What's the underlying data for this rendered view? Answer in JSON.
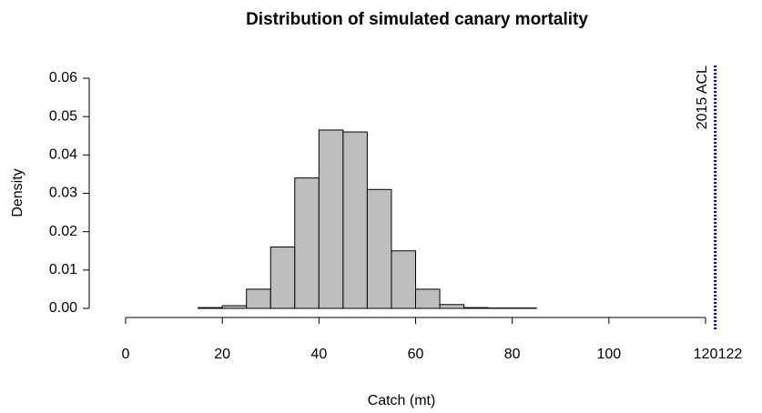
{
  "chart_data": {
    "type": "histogram",
    "title": "Distribution of simulated canary mortality",
    "x_label": "Catch (mt)",
    "y_label": "Density",
    "bins": [
      15,
      20,
      25,
      30,
      35,
      40,
      45,
      50,
      55,
      60,
      65,
      70,
      75,
      80,
      85
    ],
    "values": [
      0.0002,
      0.0007,
      0.005,
      0.016,
      0.034,
      0.0465,
      0.046,
      0.031,
      0.015,
      0.005,
      0.001,
      0.0002,
      0.0001,
      0.0001
    ],
    "color": "#bebebe",
    "xlim": [
      0,
      120
    ],
    "xticks": [
      0,
      20,
      40,
      60,
      80,
      100,
      120
    ],
    "ylim": [
      0,
      0.06
    ],
    "yticks": [
      {
        "value": 0,
        "label": "0.00"
      },
      {
        "value": 0.01,
        "label": "0.01"
      },
      {
        "value": 0.02,
        "label": "0.02"
      },
      {
        "value": 0.03,
        "label": "0.03"
      },
      {
        "value": 0.04,
        "label": "0.04"
      },
      {
        "value": 0.05,
        "label": "0.05"
      },
      {
        "value": 0.06,
        "label": "0.06"
      }
    ],
    "reference_line": {
      "value": 122,
      "label": "2015 ACL",
      "color": "#00008b"
    }
  }
}
